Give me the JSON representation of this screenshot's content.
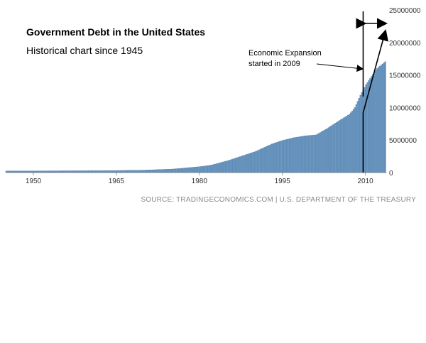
{
  "chart_data": {
    "type": "bar",
    "title": "Government Debt in the United States",
    "subtitle": "Historical chart since 1945",
    "source": "SOURCE: TRADINGECONOMICS.COM | U.S. DEPARTMENT OF THE TREASURY",
    "xlabel": "",
    "ylabel": "",
    "xlim": [
      1945,
      2013.9
    ],
    "ylim": [
      0,
      25000000
    ],
    "x_ticks": [
      1950,
      1965,
      1980,
      1995,
      2010
    ],
    "y_ticks": [
      0,
      5000000,
      10000000,
      15000000,
      20000000,
      25000000
    ],
    "series": [
      {
        "x": [
          1945,
          1950,
          1955,
          1960,
          1965,
          1970,
          1975,
          1980,
          1982,
          1985,
          1990,
          1993,
          1995,
          1997,
          1999,
          2001,
          2003,
          2005,
          2007,
          2008,
          2009,
          2010,
          2011,
          2012,
          2013,
          2013.7
        ],
        "values": [
          260000,
          257000,
          274000,
          291000,
          322000,
          380000,
          540000,
          910000,
          1140000,
          1820000,
          3230000,
          4400000,
          4970000,
          5370000,
          5650000,
          5800000,
          6780000,
          7900000,
          8950000,
          10000000,
          11900000,
          13500000,
          14800000,
          16000000,
          16700000,
          17200000
        ]
      }
    ],
    "annotation": {
      "text_line1": "Economic Expansion",
      "text_line2": "started in 2009",
      "arrow_start": [
        2009.6,
        9200000
      ],
      "arrow_end": [
        2013.6,
        21700000
      ],
      "vline_x": 2009.6,
      "bracket_x": [
        2009.6,
        2013.9
      ]
    },
    "bar_color": "#6a98c4",
    "bar_edge_color": "#3f6f9c"
  }
}
